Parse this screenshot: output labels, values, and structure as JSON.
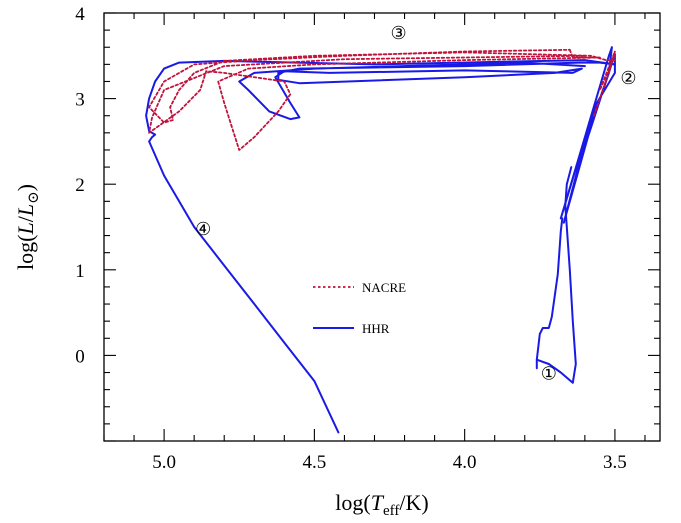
{
  "chart_data": {
    "type": "line",
    "xlabel": "log(T_eff/K)",
    "ylabel": "log(L/L_⊙)",
    "xlim": [
      5.2,
      3.35
    ],
    "ylim": [
      -1.0,
      4.0
    ],
    "x_reversed": true,
    "grid": false,
    "legend_placement": "center",
    "x_ticks": [
      5.0,
      4.5,
      4.0,
      3.5
    ],
    "x_tick_labels": [
      "5.0",
      "4.5",
      "4.0",
      "3.5"
    ],
    "y_ticks": [
      0,
      1,
      2,
      3,
      4
    ],
    "y_tick_labels": [
      "0",
      "1",
      "2",
      "3",
      "4"
    ],
    "colors": {
      "NACRE": "#c0143c",
      "HHR": "#1a1ae6"
    },
    "series": [
      {
        "name": "HHR",
        "style": "solid",
        "segments": [
          [
            [
              3.76,
              -0.15
            ],
            [
              3.76,
              -0.05
            ],
            [
              3.72,
              -0.1
            ],
            [
              3.68,
              -0.2
            ],
            [
              3.64,
              -0.32
            ],
            [
              3.63,
              -0.1
            ],
            [
              3.64,
              0.4
            ],
            [
              3.65,
              1.0
            ],
            [
              3.66,
              1.5
            ],
            [
              3.665,
              1.75
            ],
            [
              3.66,
              2.0
            ],
            [
              3.645,
              2.2
            ]
          ],
          [
            [
              3.76,
              -0.05
            ],
            [
              3.75,
              0.25
            ],
            [
              3.74,
              0.32
            ],
            [
              3.72,
              0.32
            ],
            [
              3.71,
              0.45
            ],
            [
              3.7,
              0.7
            ],
            [
              3.69,
              0.95
            ],
            [
              3.685,
              1.2
            ],
            [
              3.68,
              1.45
            ],
            [
              3.675,
              1.6
            ]
          ],
          [
            [
              3.68,
              1.6
            ],
            [
              3.6,
              2.55
            ],
            [
              3.52,
              3.5
            ],
            [
              3.51,
              3.6
            ],
            [
              3.52,
              3.3
            ],
            [
              3.6,
              2.5
            ],
            [
              3.67,
              1.55
            ],
            [
              3.59,
              2.55
            ],
            [
              3.5,
              3.52
            ],
            [
              3.5,
              3.3
            ],
            [
              3.56,
              2.95
            ],
            [
              3.62,
              2.3
            ],
            [
              3.68,
              1.6
            ]
          ],
          [
            [
              3.5,
              3.4
            ],
            [
              3.55,
              3.42
            ],
            [
              3.62,
              3.42
            ],
            [
              4.0,
              3.38
            ],
            [
              4.55,
              3.35
            ],
            [
              4.62,
              3.3
            ],
            [
              4.62,
              3.22
            ],
            [
              4.55,
              3.18
            ],
            [
              4.0,
              3.25
            ],
            [
              3.7,
              3.3
            ],
            [
              3.61,
              3.35
            ],
            [
              3.64,
              3.3
            ],
            [
              4.0,
              3.33
            ],
            [
              4.45,
              3.3
            ],
            [
              4.6,
              3.32
            ],
            [
              4.63,
              3.25
            ],
            [
              4.58,
              2.95
            ],
            [
              4.55,
              2.78
            ],
            [
              4.58,
              2.76
            ],
            [
              4.65,
              2.85
            ],
            [
              4.72,
              3.1
            ],
            [
              4.75,
              3.2
            ],
            [
              4.7,
              3.3
            ],
            [
              4.5,
              3.35
            ],
            [
              4.0,
              3.4
            ],
            [
              3.8,
              3.42
            ],
            [
              3.6,
              3.38
            ]
          ],
          [
            [
              3.5,
              3.4
            ],
            [
              3.6,
              3.45
            ],
            [
              4.3,
              3.4
            ],
            [
              4.8,
              3.44
            ],
            [
              4.95,
              3.42
            ],
            [
              5.0,
              3.35
            ],
            [
              5.03,
              3.2
            ],
            [
              5.05,
              3.0
            ],
            [
              5.06,
              2.8
            ],
            [
              5.05,
              2.62
            ],
            [
              5.03,
              2.58
            ],
            [
              5.04,
              2.55
            ],
            [
              5.05,
              2.5
            ],
            [
              5.0,
              2.1
            ],
            [
              4.9,
              1.5
            ],
            [
              4.8,
              1.05
            ],
            [
              4.7,
              0.6
            ],
            [
              4.6,
              0.15
            ],
            [
              4.5,
              -0.3
            ],
            [
              4.42,
              -0.9
            ]
          ]
        ]
      },
      {
        "name": "NACRE",
        "style": "dotted",
        "segments": [
          [
            [
              3.57,
              2.8
            ],
            [
              3.52,
              3.3
            ],
            [
              3.5,
              3.55
            ],
            [
              3.55,
              3.1
            ],
            [
              3.5,
              3.5
            ],
            [
              3.5,
              3.45
            ],
            [
              3.53,
              3.45
            ],
            [
              3.58,
              3.5
            ],
            [
              4.0,
              3.54
            ],
            [
              4.5,
              3.5
            ],
            [
              4.8,
              3.44
            ],
            [
              4.9,
              3.3
            ],
            [
              4.95,
              3.1
            ],
            [
              4.98,
              2.9
            ],
            [
              4.97,
              2.75
            ],
            [
              5.0,
              2.72
            ],
            [
              5.05,
              2.9
            ],
            [
              5.0,
              3.2
            ],
            [
              4.9,
              3.4
            ],
            [
              4.7,
              3.45
            ],
            [
              4.4,
              3.5
            ],
            [
              4.0,
              3.55
            ],
            [
              3.65,
              3.57
            ]
          ],
          [
            [
              3.65,
              3.57
            ],
            [
              3.64,
              3.48
            ],
            [
              3.55,
              3.48
            ],
            [
              4.0,
              3.45
            ],
            [
              4.5,
              3.4
            ],
            [
              4.72,
              3.35
            ],
            [
              4.82,
              3.2
            ],
            [
              4.8,
              2.95
            ],
            [
              4.75,
              2.4
            ],
            [
              4.7,
              2.55
            ],
            [
              4.62,
              2.85
            ],
            [
              4.58,
              3.05
            ],
            [
              4.6,
              3.2
            ],
            [
              4.8,
              3.3
            ],
            [
              4.86,
              3.32
            ],
            [
              4.88,
              3.1
            ],
            [
              4.95,
              2.85
            ],
            [
              5.05,
              2.6
            ],
            [
              5.04,
              2.78
            ],
            [
              5.0,
              3.1
            ],
            [
              4.8,
              3.38
            ],
            [
              4.4,
              3.46
            ],
            [
              4.0,
              3.48
            ],
            [
              3.6,
              3.5
            ]
          ]
        ]
      }
    ],
    "legend": [
      {
        "name": "NACRE",
        "style": "dotted"
      },
      {
        "name": "HHR",
        "style": "solid"
      }
    ],
    "annotations": [
      {
        "text": "①",
        "x": 3.72,
        "y": -0.2
      },
      {
        "text": "②",
        "x": 3.455,
        "y": 3.25
      },
      {
        "text": "③",
        "x": 4.22,
        "y": 3.78
      },
      {
        "text": "④",
        "x": 4.87,
        "y": 1.49
      }
    ]
  }
}
